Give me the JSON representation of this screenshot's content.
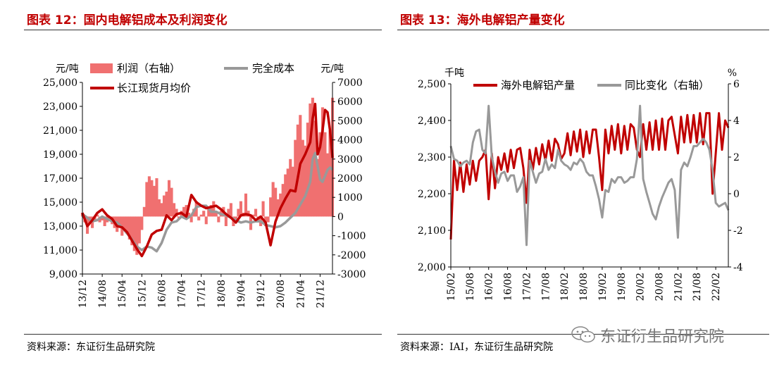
{
  "colors": {
    "title": "#c00000",
    "price": "#c00000",
    "profit": "#f07070",
    "cost": "#999999",
    "volume": "#c00000",
    "yoy": "#999999"
  },
  "watermark": {
    "text": "东证衍生品研究院",
    "icon": "wechat-icon"
  },
  "chart_data": [
    {
      "type": "line",
      "title": "图表 12：国内电解铝成本及利润变化",
      "source": "资料来源：东证衍生品研究院",
      "left_axis": {
        "unit": "元/吨",
        "ticks": [
          "25,000",
          "23,000",
          "21,000",
          "19,000",
          "17,000",
          "15,000",
          "13,000",
          "11,000",
          "9,000"
        ],
        "ylim": [
          9000,
          25000
        ]
      },
      "right_axis": {
        "unit": "元/吨",
        "ticks": [
          "7000",
          "6000",
          "5000",
          "4000",
          "3000",
          "2000",
          "1000",
          "0",
          "-1000",
          "-2000",
          "-3000"
        ],
        "ylim": [
          -3000,
          7000
        ]
      },
      "x_ticks": [
        "13/12",
        "14/08",
        "15/04",
        "15/12",
        "16/08",
        "17/04",
        "17/12",
        "18/08",
        "19/04",
        "19/12",
        "20/08",
        "21/04",
        "21/12"
      ],
      "x_range": [
        "2013-12",
        "2022-05"
      ],
      "legend": {
        "profit": "利润（右轴）",
        "cost": "完全成本",
        "cost_unit": "元/吨",
        "price": "长江现货月均价"
      },
      "series": [
        {
          "name": "利润（右轴）",
          "kind": "area",
          "axis": "right",
          "x": [
            "2013-12",
            "2014-01",
            "2014-02",
            "2014-03",
            "2014-04",
            "2014-05",
            "2014-06",
            "2014-07",
            "2014-08",
            "2014-09",
            "2014-10",
            "2014-11",
            "2014-12",
            "2015-01",
            "2015-02",
            "2015-03",
            "2015-04",
            "2015-05",
            "2015-06",
            "2015-07",
            "2015-08",
            "2015-09",
            "2015-10",
            "2015-11",
            "2015-12",
            "2016-01",
            "2016-02",
            "2016-03",
            "2016-04",
            "2016-05",
            "2016-06",
            "2016-07",
            "2016-08",
            "2016-09",
            "2016-10",
            "2016-11",
            "2016-12",
            "2017-01",
            "2017-02",
            "2017-03",
            "2017-04",
            "2017-05",
            "2017-06",
            "2017-07",
            "2017-08",
            "2017-09",
            "2017-10",
            "2017-11",
            "2017-12",
            "2018-01",
            "2018-02",
            "2018-03",
            "2018-04",
            "2018-05",
            "2018-06",
            "2018-07",
            "2018-08",
            "2018-09",
            "2018-10",
            "2018-11",
            "2018-12",
            "2019-01",
            "2019-02",
            "2019-03",
            "2019-04",
            "2019-05",
            "2019-06",
            "2019-07",
            "2019-08",
            "2019-09",
            "2019-10",
            "2019-11",
            "2019-12",
            "2020-01",
            "2020-02",
            "2020-03",
            "2020-04",
            "2020-05",
            "2020-06",
            "2020-07",
            "2020-08",
            "2020-09",
            "2020-10",
            "2020-11",
            "2020-12",
            "2021-01",
            "2021-02",
            "2021-03",
            "2021-04",
            "2021-05",
            "2021-06",
            "2021-07",
            "2021-08",
            "2021-09",
            "2021-10",
            "2021-11",
            "2021-12",
            "2022-01",
            "2022-02",
            "2022-03",
            "2022-04",
            "2022-05"
          ],
          "values": [
            200,
            -300,
            -900,
            -400,
            -600,
            -200,
            100,
            -300,
            -200,
            -500,
            -300,
            -100,
            -400,
            -600,
            -800,
            -500,
            -1000,
            -700,
            -900,
            -1200,
            -1500,
            -1800,
            -2000,
            -1400,
            -700,
            500,
            1800,
            2100,
            1900,
            1600,
            2000,
            900,
            700,
            1100,
            1300,
            1900,
            1500,
            700,
            400,
            -100,
            300,
            500,
            600,
            200,
            -300,
            400,
            800,
            -200,
            100,
            300,
            -400,
            400,
            600,
            800,
            200,
            -300,
            300,
            500,
            -500,
            400,
            700,
            -500,
            -300,
            400,
            800,
            200,
            1200,
            300,
            -700,
            100,
            400,
            -300,
            -500,
            800,
            -500,
            -300,
            1000,
            1800,
            1500,
            900,
            1200,
            1700,
            2200,
            2500,
            3000,
            2600,
            4000,
            4800,
            5300,
            4000,
            3700,
            4900,
            5900,
            6200,
            5000,
            3000,
            4400,
            5700,
            4400,
            3300,
            4500,
            6200
          ]
        },
        {
          "name": "完全成本",
          "kind": "line",
          "axis": "left",
          "x": [
            "2013-12",
            "2014-02",
            "2014-04",
            "2014-06",
            "2014-08",
            "2014-10",
            "2014-12",
            "2015-02",
            "2015-04",
            "2015-06",
            "2015-08",
            "2015-10",
            "2015-12",
            "2016-02",
            "2016-04",
            "2016-06",
            "2016-08",
            "2016-10",
            "2016-12",
            "2017-02",
            "2017-04",
            "2017-06",
            "2017-08",
            "2017-10",
            "2017-12",
            "2018-02",
            "2018-04",
            "2018-06",
            "2018-08",
            "2018-10",
            "2018-12",
            "2019-02",
            "2019-04",
            "2019-06",
            "2019-08",
            "2019-10",
            "2019-12",
            "2020-02",
            "2020-04",
            "2020-06",
            "2020-08",
            "2020-10",
            "2020-12",
            "2021-02",
            "2021-04",
            "2021-06",
            "2021-08",
            "2021-09",
            "2021-10",
            "2021-11",
            "2021-12",
            "2022-01",
            "2022-02",
            "2022-03",
            "2022-04",
            "2022-05"
          ],
          "values": [
            14000,
            13700,
            13400,
            13500,
            13800,
            13600,
            13400,
            13300,
            12900,
            12400,
            11900,
            11300,
            11000,
            11300,
            11200,
            10900,
            11600,
            12700,
            13300,
            13400,
            13800,
            13600,
            13900,
            14600,
            14700,
            14700,
            14200,
            14200,
            14000,
            13900,
            13700,
            13500,
            13300,
            13400,
            13300,
            13400,
            13400,
            13100,
            13000,
            12900,
            13000,
            13300,
            13700,
            14100,
            14800,
            15500,
            16700,
            18600,
            19100,
            18000,
            16900,
            16700,
            17200,
            17700,
            17900,
            17700
          ]
        },
        {
          "name": "长江现货月均价",
          "kind": "line",
          "axis": "left",
          "x": [
            "2013-12",
            "2014-02",
            "2014-04",
            "2014-06",
            "2014-08",
            "2014-10",
            "2014-12",
            "2015-02",
            "2015-04",
            "2015-06",
            "2015-08",
            "2015-10",
            "2015-12",
            "2016-02",
            "2016-04",
            "2016-06",
            "2016-08",
            "2016-10",
            "2016-12",
            "2017-02",
            "2017-04",
            "2017-06",
            "2017-08",
            "2017-10",
            "2017-12",
            "2018-02",
            "2018-04",
            "2018-06",
            "2018-08",
            "2018-10",
            "2018-12",
            "2019-02",
            "2019-04",
            "2019-06",
            "2019-08",
            "2019-10",
            "2019-12",
            "2020-02",
            "2020-04",
            "2020-06",
            "2020-08",
            "2020-10",
            "2020-12",
            "2021-02",
            "2021-04",
            "2021-06",
            "2021-08",
            "2021-09",
            "2021-10",
            "2021-11",
            "2021-12",
            "2022-01",
            "2022-02",
            "2022-03",
            "2022-04",
            "2022-05"
          ],
          "values": [
            14100,
            13000,
            13500,
            14100,
            14400,
            13900,
            13600,
            13000,
            12900,
            12500,
            11800,
            11100,
            10500,
            11300,
            12300,
            12600,
            12700,
            13900,
            13500,
            14000,
            14100,
            13800,
            15600,
            15000,
            14700,
            14500,
            14600,
            14700,
            14400,
            14000,
            13700,
            13300,
            13900,
            14000,
            13900,
            13500,
            13800,
            13300,
            11400,
            13400,
            14500,
            15300,
            16000,
            15900,
            18200,
            19000,
            20000,
            22000,
            23200,
            19000,
            19600,
            21000,
            22700,
            22500,
            21000,
            18700
          ]
        }
      ]
    },
    {
      "type": "line",
      "title": "图表 13：海外电解铝产量变化",
      "source": "资料来源：IAI，东证衍生品研究院",
      "left_axis": {
        "unit": "千吨",
        "ticks": [
          "2,500",
          "2,400",
          "2,300",
          "2,200",
          "2,100",
          "2,000"
        ],
        "ylim": [
          2000,
          2500
        ]
      },
      "right_axis": {
        "unit": "%",
        "ticks": [
          "6",
          "4",
          "2",
          "0",
          "-2",
          "-4"
        ],
        "ylim": [
          -4,
          6
        ]
      },
      "x_ticks": [
        "15/02",
        "15/08",
        "16/02",
        "16/08",
        "17/02",
        "17/08",
        "18/02",
        "18/08",
        "19/02",
        "19/08",
        "20/02",
        "20/08",
        "21/02",
        "21/08",
        "22/02"
      ],
      "x_range": [
        "2015-02",
        "2022-06"
      ],
      "legend": {
        "volume": "海外电解铝产量",
        "yoy": "同比变化（右轴）"
      },
      "series": [
        {
          "name": "海外电解铝产量",
          "kind": "line",
          "axis": "left",
          "x": [
            "2015-02",
            "2015-03",
            "2015-04",
            "2015-05",
            "2015-06",
            "2015-07",
            "2015-08",
            "2015-09",
            "2015-10",
            "2015-11",
            "2015-12",
            "2016-01",
            "2016-02",
            "2016-03",
            "2016-04",
            "2016-05",
            "2016-06",
            "2016-07",
            "2016-08",
            "2016-09",
            "2016-10",
            "2016-11",
            "2016-12",
            "2017-01",
            "2017-02",
            "2017-03",
            "2017-04",
            "2017-05",
            "2017-06",
            "2017-07",
            "2017-08",
            "2017-09",
            "2017-10",
            "2017-11",
            "2017-12",
            "2018-01",
            "2018-02",
            "2018-03",
            "2018-04",
            "2018-05",
            "2018-06",
            "2018-07",
            "2018-08",
            "2018-09",
            "2018-10",
            "2018-11",
            "2018-12",
            "2019-01",
            "2019-02",
            "2019-03",
            "2019-04",
            "2019-05",
            "2019-06",
            "2019-07",
            "2019-08",
            "2019-09",
            "2019-10",
            "2019-11",
            "2019-12",
            "2020-01",
            "2020-02",
            "2020-03",
            "2020-04",
            "2020-05",
            "2020-06",
            "2020-07",
            "2020-08",
            "2020-09",
            "2020-10",
            "2020-11",
            "2020-12",
            "2021-01",
            "2021-02",
            "2021-03",
            "2021-04",
            "2021-05",
            "2021-06",
            "2021-07",
            "2021-08",
            "2021-09",
            "2021-10",
            "2021-11",
            "2021-12",
            "2022-01",
            "2022-02",
            "2022-03",
            "2022-04",
            "2022-05",
            "2022-06"
          ],
          "values": [
            2075,
            2290,
            2210,
            2285,
            2205,
            2280,
            2225,
            2290,
            2235,
            2290,
            2300,
            2320,
            2185,
            2310,
            2215,
            2300,
            2265,
            2310,
            2260,
            2320,
            2270,
            2320,
            2325,
            2270,
            2175,
            2320,
            2265,
            2325,
            2280,
            2335,
            2290,
            2345,
            2290,
            2350,
            2335,
            2295,
            2310,
            2365,
            2305,
            2370,
            2315,
            2375,
            2300,
            2370,
            2310,
            2375,
            2375,
            2300,
            2210,
            2375,
            2310,
            2385,
            2320,
            2390,
            2310,
            2385,
            2320,
            2390,
            2380,
            2320,
            2300,
            2390,
            2320,
            2395,
            2320,
            2400,
            2320,
            2405,
            2320,
            2400,
            2410,
            2360,
            2310,
            2410,
            2340,
            2415,
            2340,
            2415,
            2340,
            2420,
            2335,
            2420,
            2420,
            2200,
            2310,
            2420,
            2320,
            2400,
            2380
          ]
        },
        {
          "name": "同比变化（右轴）",
          "kind": "line",
          "axis": "right",
          "x": [
            "2015-02",
            "2015-03",
            "2015-04",
            "2015-05",
            "2015-06",
            "2015-07",
            "2015-08",
            "2015-09",
            "2015-10",
            "2015-11",
            "2015-12",
            "2016-01",
            "2016-02",
            "2016-03",
            "2016-04",
            "2016-05",
            "2016-06",
            "2016-07",
            "2016-08",
            "2016-09",
            "2016-10",
            "2016-11",
            "2016-12",
            "2017-01",
            "2017-02",
            "2017-03",
            "2017-04",
            "2017-05",
            "2017-06",
            "2017-07",
            "2017-08",
            "2017-09",
            "2017-10",
            "2017-11",
            "2017-12",
            "2018-01",
            "2018-02",
            "2018-03",
            "2018-04",
            "2018-05",
            "2018-06",
            "2018-07",
            "2018-08",
            "2018-09",
            "2018-10",
            "2018-11",
            "2018-12",
            "2019-01",
            "2019-02",
            "2019-03",
            "2019-04",
            "2019-05",
            "2019-06",
            "2019-07",
            "2019-08",
            "2019-09",
            "2019-10",
            "2019-11",
            "2019-12",
            "2020-01",
            "2020-02",
            "2020-03",
            "2020-04",
            "2020-05",
            "2020-06",
            "2020-07",
            "2020-08",
            "2020-09",
            "2020-10",
            "2020-11",
            "2020-12",
            "2021-01",
            "2021-02",
            "2021-03",
            "2021-04",
            "2021-05",
            "2021-06",
            "2021-07",
            "2021-08",
            "2021-09",
            "2021-10",
            "2021-11",
            "2021-12",
            "2022-01",
            "2022-02",
            "2022-03",
            "2022-04",
            "2022-05",
            "2022-06"
          ],
          "values": [
            2.6,
            1.9,
            1.8,
            1.5,
            1.7,
            1.8,
            1.6,
            2.8,
            3.4,
            3.5,
            2.4,
            2.2,
            4.8,
            2.0,
            1.2,
            0.6,
            1.1,
            1.2,
            0.7,
            1.0,
            1.0,
            0.1,
            0.4,
            0.9,
            -2.8,
            1.8,
            1.2,
            0.6,
            1.1,
            1.2,
            1.9,
            1.3,
            1.6,
            1.4,
            2.4,
            1.8,
            1.6,
            1.5,
            1.3,
            1.7,
            1.6,
            1.9,
            1.7,
            1.2,
            1.0,
            1.0,
            0.4,
            -0.3,
            -1.3,
            0.2,
            0.1,
            0.8,
            0.6,
            0.9,
            0.9,
            0.6,
            0.7,
            0.9,
            0.9,
            1.9,
            4.8,
            0.8,
            0.1,
            -0.5,
            -1.1,
            -1.4,
            -0.7,
            -0.2,
            0.2,
            0.6,
            0.8,
            0.2,
            -2.4,
            1.3,
            1.7,
            1.5,
            2.0,
            2.6,
            2.6,
            2.8,
            3.0,
            2.8,
            2.4,
            1.3,
            -0.5,
            -0.7,
            -0.6,
            -0.5,
            -0.9
          ]
        }
      ]
    }
  ]
}
